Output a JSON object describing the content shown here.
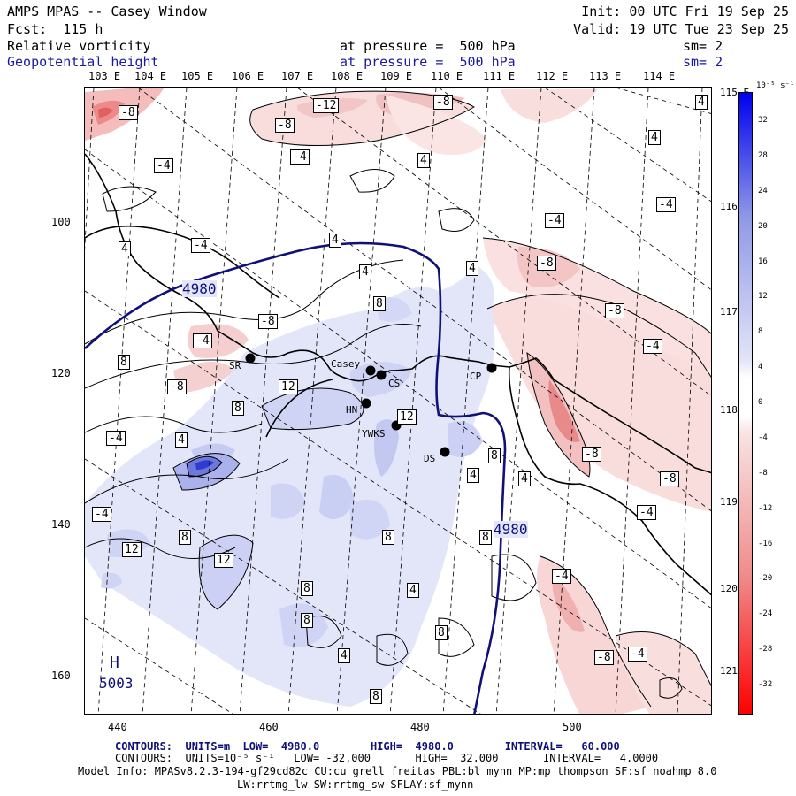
{
  "header": {
    "title": "AMPS MPAS -- Casey Window",
    "init": "Init: 00 UTC Fri 19 Sep 25",
    "fcst": "Fcst:  115 h",
    "valid": "Valid: 19 UTC Tue 23 Sep 25",
    "field1_name": "Relative vorticity",
    "field1_level": "at pressure =  500 hPa",
    "field1_sm": "sm= 2",
    "field2_name": "Geopotential height",
    "field2_level": "at pressure =  500 hPa",
    "field2_sm": "sm= 2"
  },
  "top_lon_labels": [
    "103 E",
    "104 E",
    "105 E",
    "106 E",
    "107 E",
    "108 E",
    "109 E",
    "110 E",
    "111 E",
    "112 E",
    "113 E",
    "114 E"
  ],
  "right_lon_labels": [
    "115 E",
    "116 E",
    "117 E",
    "118 E",
    "119 E",
    "120 E",
    "121 E"
  ],
  "y_axis_labels": [
    "100",
    "120",
    "140",
    "160"
  ],
  "x_axis_labels": [
    "440",
    "460",
    "480",
    "500"
  ],
  "stations": [
    "Casey",
    "CS",
    "SR",
    "HN",
    "YWKS",
    "DS",
    "CP"
  ],
  "contour_labels": {
    "positive": [
      "4",
      "8",
      "12"
    ],
    "negative": [
      "-4",
      "-8",
      "-12"
    ],
    "height": [
      "4980",
      "4980"
    ],
    "high_marker": "H",
    "high_value": "5003"
  },
  "colorbar": {
    "unit": "10⁻⁵ s⁻¹",
    "ticks": [
      "32",
      "28",
      "24",
      "20",
      "16",
      "12",
      "8",
      "4",
      "0",
      "-4",
      "-8",
      "-12",
      "-16",
      "-20",
      "-24",
      "-28",
      "-32"
    ],
    "colors": {
      "max_pos": "#0000ee",
      "min_pos": "#e2e4f8",
      "min_neg": "#f8e2e2",
      "max_neg": "#ff0000"
    }
  },
  "footer": {
    "line1": "CONTOURS:  UNITS=m  LOW=  4980.0        HIGH=  4980.0        INTERVAL=   60.000",
    "line2": "CONTOURS:  UNITS=10⁻⁵ s⁻¹   LOW= -32.000       HIGH=  32.000       INTERVAL=   4.0000",
    "line3": "Model Info: MPASv8.2.3-194-gf29cd82c CU:cu_grell_freitas PBL:bl_mynn MP:mp_thompson SF:sf_noahmp 8.0",
    "line4": "LW:rrtmg_lw SW:rrtmg_sw SFLAY:sf_mynn"
  }
}
